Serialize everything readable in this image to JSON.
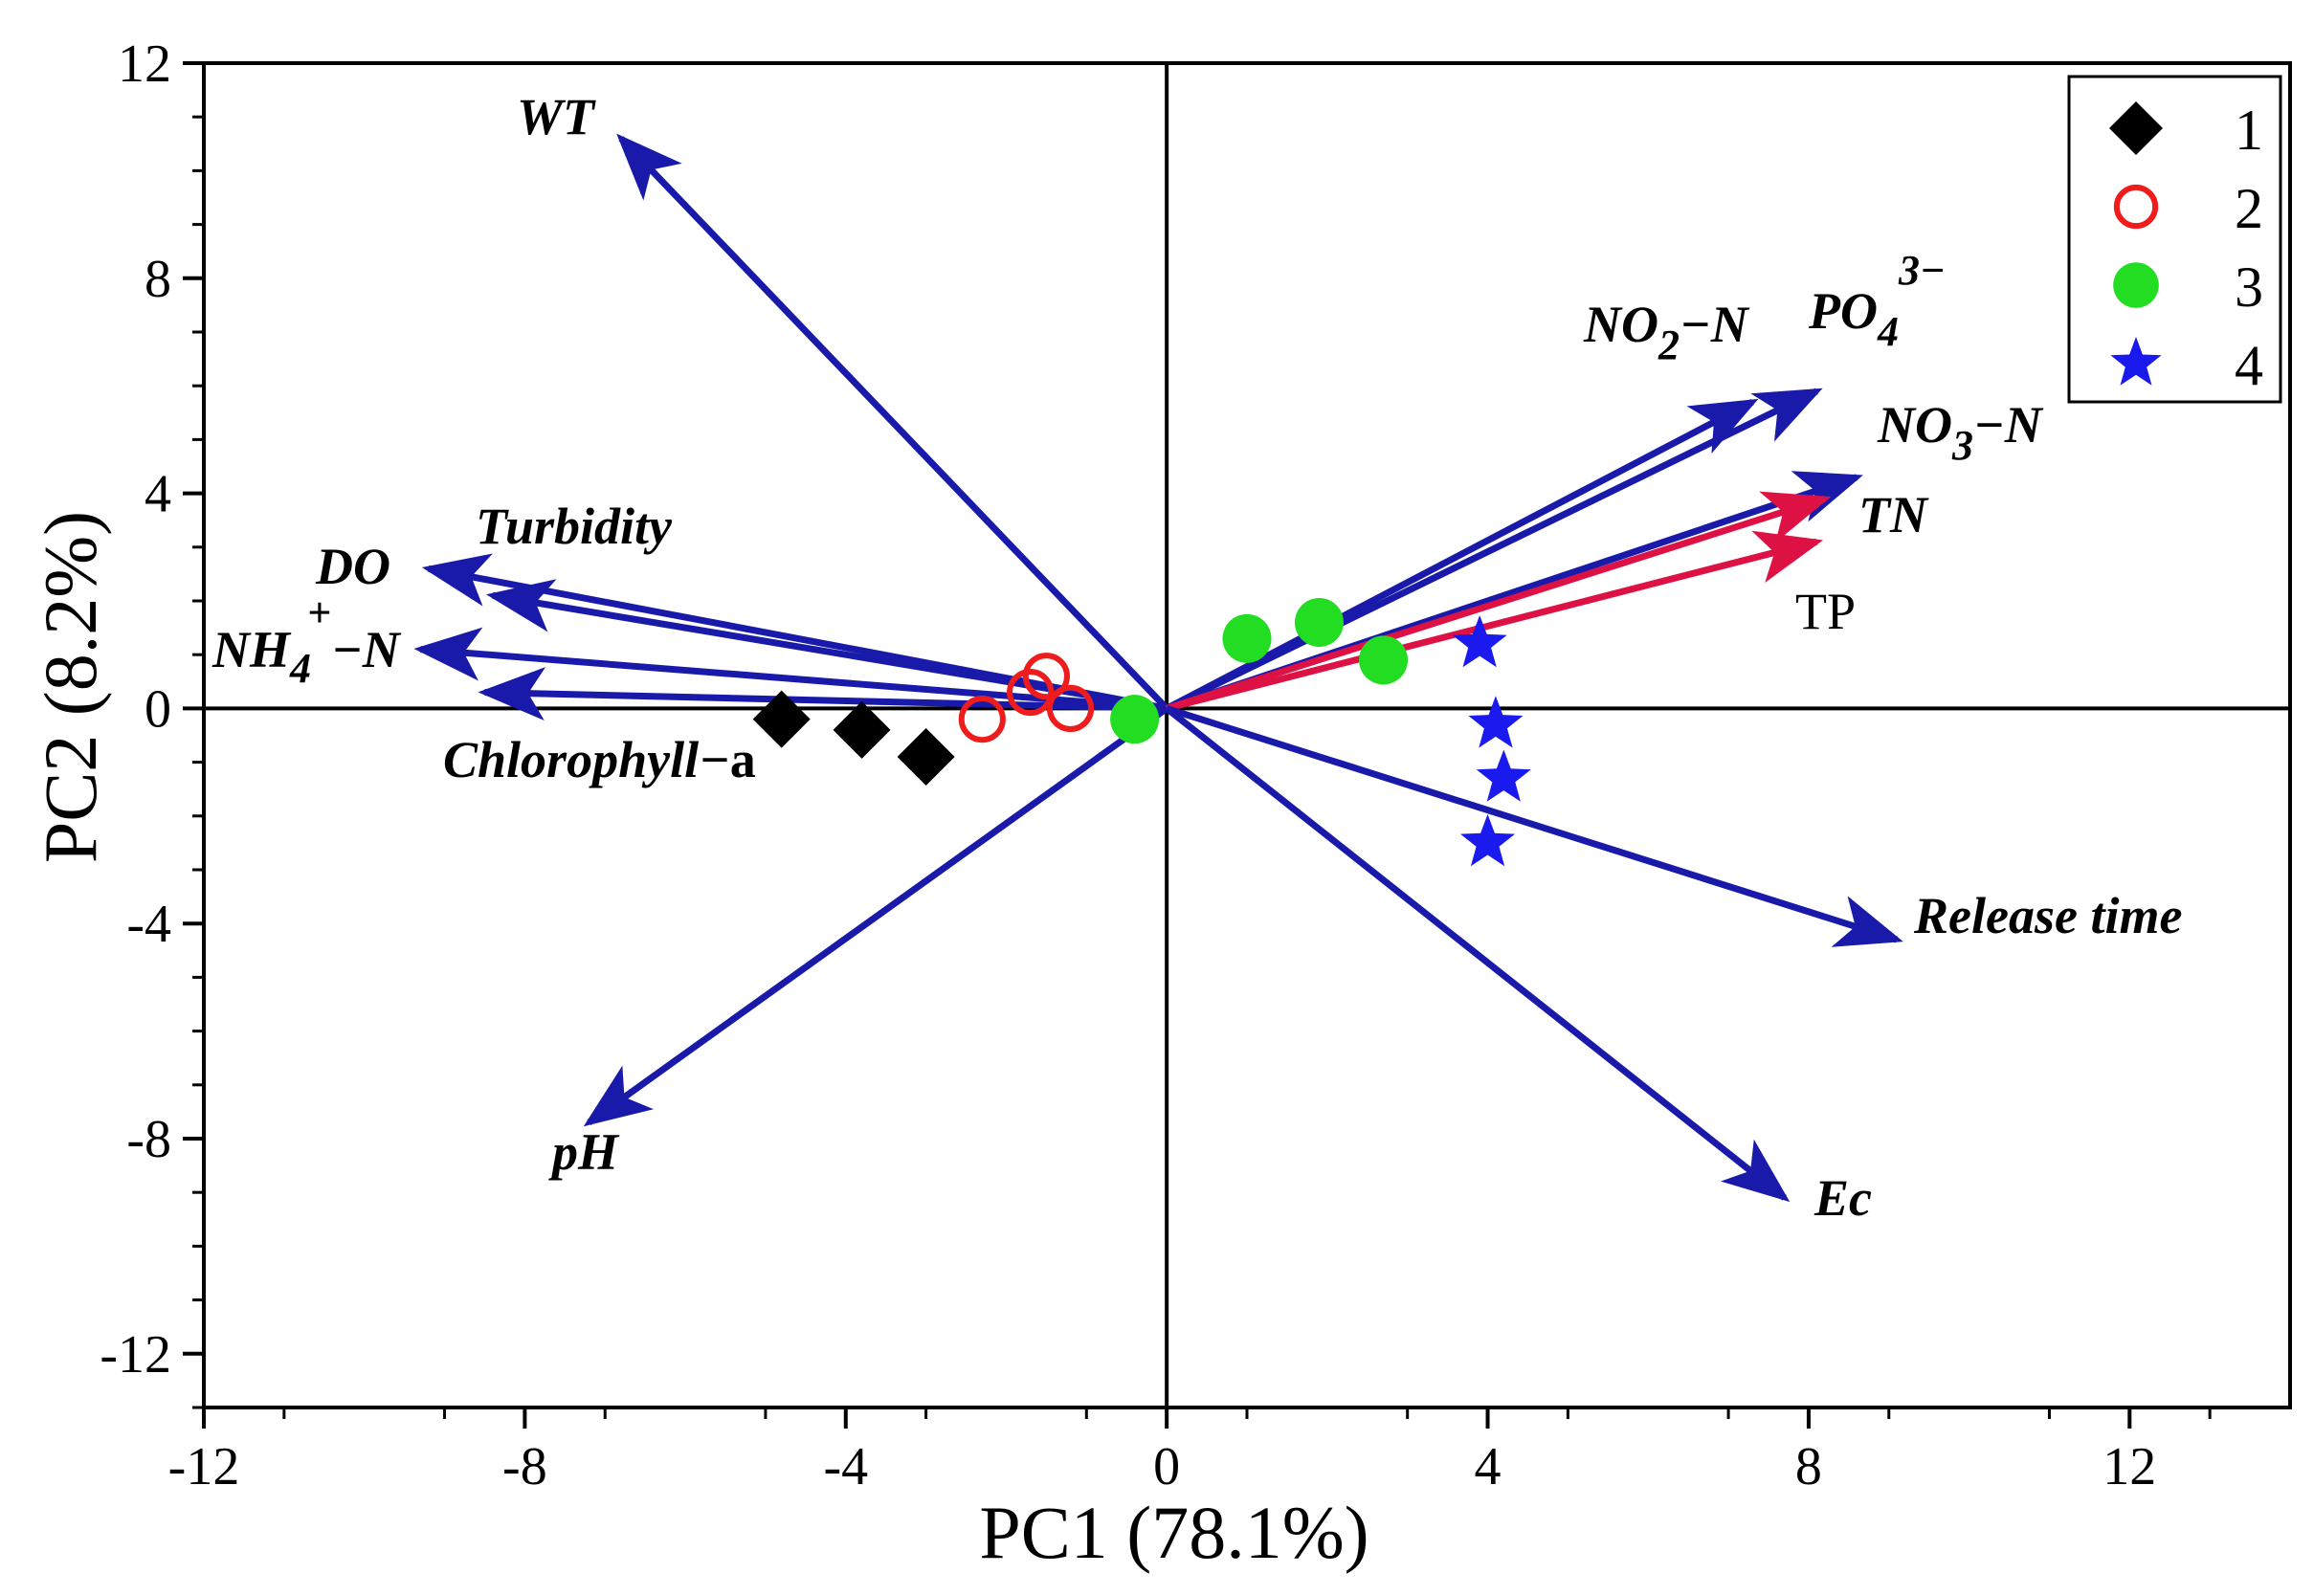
{
  "chart_data": {
    "type": "scatter",
    "title": "",
    "xlabel": "PC1 (78.1%)",
    "ylabel": "PC2 (8.2%)",
    "xlim": [
      -12,
      14
    ],
    "ylim": [
      -13,
      12
    ],
    "xticks": [
      -12,
      -8,
      -4,
      0,
      4,
      8,
      12
    ],
    "yticks": [
      -12,
      -8,
      -4,
      0,
      4,
      8,
      12
    ],
    "legend_position": "top-right",
    "series": [
      {
        "name": "1",
        "marker": "diamond",
        "color": "#000000",
        "points": [
          {
            "x": -4.8,
            "y": -0.2
          },
          {
            "x": -3.8,
            "y": -0.4
          },
          {
            "x": -3.0,
            "y": -0.9
          }
        ]
      },
      {
        "name": "2",
        "marker": "open-circle",
        "color": "#ee1c1c",
        "points": [
          {
            "x": -1.5,
            "y": 0.6
          },
          {
            "x": -1.7,
            "y": 0.3
          },
          {
            "x": -2.3,
            "y": -0.2
          },
          {
            "x": -1.2,
            "y": 0.0
          }
        ]
      },
      {
        "name": "3",
        "marker": "filled-circle",
        "color": "#22dd22",
        "points": [
          {
            "x": 1.0,
            "y": 1.3
          },
          {
            "x": 1.9,
            "y": 1.6
          },
          {
            "x": 2.7,
            "y": 0.9
          },
          {
            "x": -0.4,
            "y": -0.2
          }
        ]
      },
      {
        "name": "4",
        "marker": "star",
        "color": "#1a1aee",
        "points": [
          {
            "x": 3.9,
            "y": 1.2
          },
          {
            "x": 4.1,
            "y": -0.3
          },
          {
            "x": 4.2,
            "y": -1.3
          },
          {
            "x": 4.0,
            "y": -2.5
          }
        ]
      }
    ],
    "loadings": [
      {
        "label": "WT",
        "x": -6.8,
        "y": 10.6,
        "color": "#1a1aaa"
      },
      {
        "label": "Turbidity",
        "x": -8.4,
        "y": 2.1,
        "color": "#1a1aaa"
      },
      {
        "label": "DO",
        "x": -9.2,
        "y": 2.6,
        "color": "#1a1aaa"
      },
      {
        "label": "NH4+−N",
        "x": -9.3,
        "y": 1.1,
        "color": "#1a1aaa"
      },
      {
        "label": "Chlorophyll−a",
        "x": -8.5,
        "y": 0.3,
        "color": "#1a1aaa"
      },
      {
        "label": "pH",
        "x": -7.2,
        "y": -7.7,
        "color": "#1a1aaa"
      },
      {
        "label": "NO2−N",
        "x": 7.3,
        "y": 5.7,
        "color": "#1a1aaa"
      },
      {
        "label": "PO43−",
        "x": 8.1,
        "y": 5.9,
        "color": "#1a1aaa"
      },
      {
        "label": "NO3−N",
        "x": 8.6,
        "y": 4.3,
        "color": "#1a1aaa"
      },
      {
        "label": "TN",
        "x": 8.2,
        "y": 3.9,
        "color": "#dd1144"
      },
      {
        "label": "TP",
        "x": 8.1,
        "y": 3.1,
        "color": "#dd1144"
      },
      {
        "label": "Release time",
        "x": 9.1,
        "y": -4.3,
        "color": "#1a1aaa"
      },
      {
        "label": "Ec",
        "x": 7.7,
        "y": -9.1,
        "color": "#1a1aaa"
      }
    ],
    "vector_text": {
      "WT": "WT",
      "Turbidity": "Turbidity",
      "DO": "DO",
      "NH4_main": "NH",
      "NH4_sub": "4",
      "NH4_sup": "+",
      "NH4_tail": "−N",
      "Chlorophyll_main": "Chlorophyll−",
      "Chlorophyll_tail": "a",
      "pH": "pH",
      "NO2_main": "NO",
      "NO2_sub": "2",
      "NO2_tail": "−N",
      "PO4_main": "PO",
      "PO4_sub": "4",
      "PO4_sup": "3−",
      "NO3_main": "NO",
      "NO3_sub": "3",
      "NO3_tail": "−N",
      "TN": "TN",
      "TP": "TP",
      "Release": "Release time",
      "Ec": "Ec"
    }
  }
}
